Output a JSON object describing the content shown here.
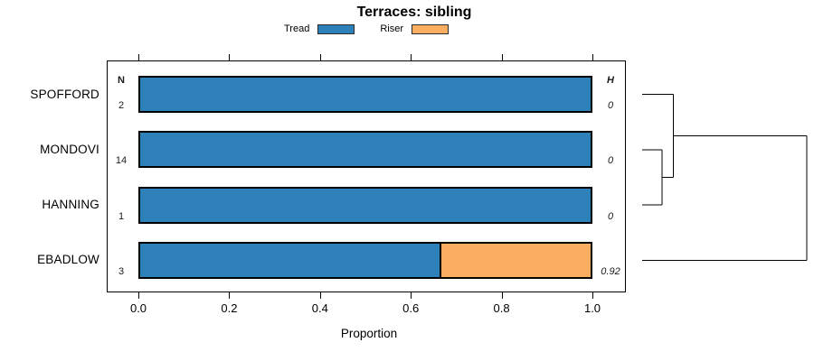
{
  "chart_data": {
    "type": "stacked_bar_horizontal_with_dendrogram",
    "title": "Terraces: sibling",
    "xlabel": "Proportion",
    "xlim": [
      0,
      1
    ],
    "xticks": [
      "0.0",
      "0.2",
      "0.4",
      "0.6",
      "0.8",
      "1.0"
    ],
    "grid": false,
    "legend": {
      "position": "top-center",
      "items": [
        {
          "label": "Tread",
          "color": "#2e80b8"
        },
        {
          "label": "Riser",
          "color": "#fbad61"
        }
      ]
    },
    "columns": {
      "n_header": "N",
      "h_header": "H"
    },
    "rows": [
      {
        "label": "SPOFFORD",
        "n": "2",
        "h": "0",
        "segments": [
          1,
          0
        ]
      },
      {
        "label": "MONDOVI",
        "n": "14",
        "h": "0",
        "segments": [
          1,
          0
        ]
      },
      {
        "label": "HANNING",
        "n": "1",
        "h": "0",
        "segments": [
          1,
          0
        ]
      },
      {
        "label": "EBADLOW",
        "n": "3",
        "h": "0.92",
        "segments": [
          0.667,
          0.333
        ]
      }
    ],
    "dendrogram": {
      "orientation": "right",
      "structure": "((SPOFFORD,(MONDOVI,HANNING)),EBADLOW)",
      "merges": [
        {
          "a": "MONDOVI",
          "b": "HANNING",
          "height": 0.12
        },
        {
          "a": "SPOFFORD",
          "b": "node1",
          "height": 0.19
        },
        {
          "a": "node2",
          "b": "EBADLOW",
          "height": 1.0
        }
      ]
    },
    "colors": {
      "frame": "#000000",
      "bar_border": "#000000",
      "text": "#000000"
    }
  }
}
